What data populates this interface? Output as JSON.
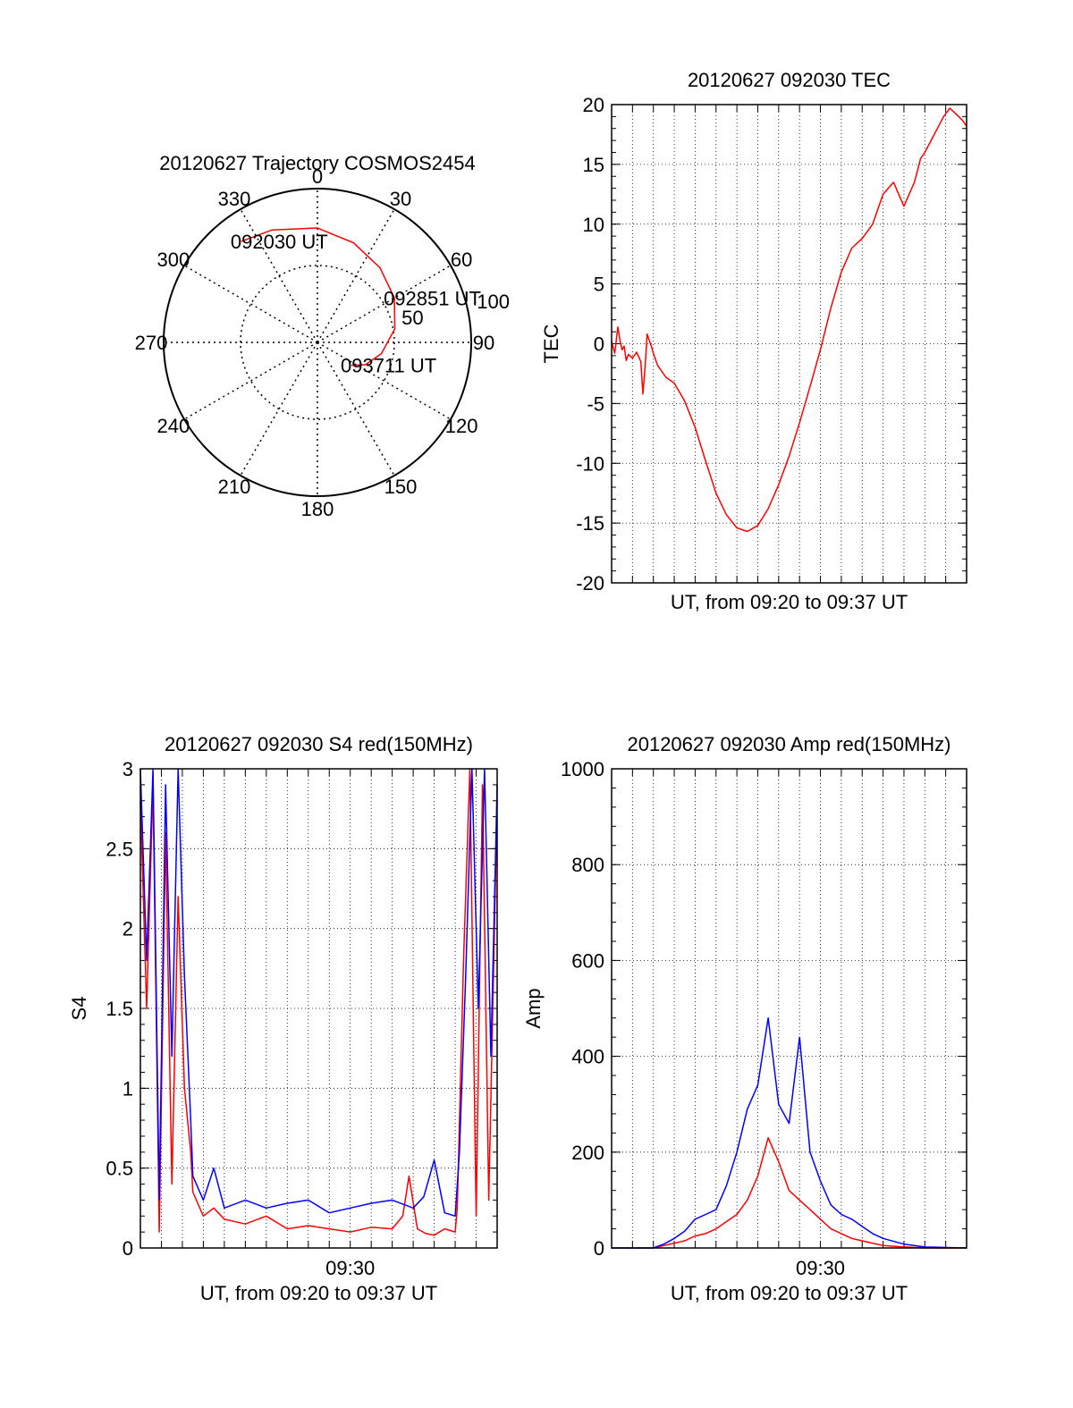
{
  "chart_data": [
    {
      "type": "polar",
      "title": "20120627 Trajectory COSMOS2454",
      "angle_labels": [
        "0",
        "30",
        "60",
        "90",
        "120",
        "150",
        "180",
        "210",
        "240",
        "270",
        "300",
        "330"
      ],
      "angles_deg": [
        0,
        30,
        60,
        90,
        120,
        150,
        180,
        210,
        240,
        270,
        300,
        330
      ],
      "radius_labels": [
        "50",
        "100"
      ],
      "radius_values": [
        50,
        100
      ],
      "trajectory": {
        "color": "#ff0000",
        "points": [
          {
            "az": 323,
            "el": 16
          },
          {
            "az": 338,
            "el": 19
          },
          {
            "az": 0,
            "el": 23
          },
          {
            "az": 20,
            "el": 28
          },
          {
            "az": 40,
            "el": 33
          },
          {
            "az": 60,
            "el": 38
          },
          {
            "az": 80,
            "el": 44
          },
          {
            "az": 100,
            "el": 52
          },
          {
            "az": 115,
            "el": 59
          },
          {
            "az": 124,
            "el": 66
          }
        ]
      },
      "annotations": [
        {
          "text": "092030 UT",
          "point": "start"
        },
        {
          "text": "092851 UT",
          "point": "middle"
        },
        {
          "text": "093711 UT",
          "point": "end"
        }
      ]
    },
    {
      "type": "line",
      "title": "20120627 092030 TEC",
      "xlabel": "UT, from 09:20 to 09:37 UT",
      "ylabel": "TEC",
      "xlim": [
        0,
        17
      ],
      "ylim": [
        -20,
        20
      ],
      "yticks": [
        -20,
        -15,
        -10,
        -5,
        0,
        5,
        10,
        15,
        20
      ],
      "grid": true,
      "series": [
        {
          "color": "#ff0000",
          "x": [
            0,
            0.15,
            0.3,
            0.4,
            0.5,
            0.6,
            0.7,
            0.8,
            1.0,
            1.2,
            1.4,
            1.5,
            1.6,
            1.7,
            1.9,
            2.0,
            2.2,
            2.6,
            3.0,
            3.5,
            4.0,
            4.5,
            5.0,
            5.5,
            6.0,
            6.5,
            7.0,
            7.5,
            8.0,
            8.5,
            9.0,
            9.5,
            10.0,
            10.5,
            11.0,
            11.5,
            12.0,
            12.5,
            13.0,
            13.5,
            14.0,
            14.5,
            14.8,
            15.0,
            15.3,
            15.6,
            15.9,
            16.2,
            16.5,
            16.8,
            17.0
          ],
          "y": [
            0.2,
            -0.8,
            1.4,
            0.3,
            -0.5,
            -0.2,
            -1.4,
            -0.9,
            -1.2,
            -0.7,
            -1.5,
            -4.2,
            -2.0,
            0.8,
            -0.2,
            -0.8,
            -1.8,
            -2.8,
            -3.3,
            -4.8,
            -7.0,
            -9.8,
            -12.5,
            -14.3,
            -15.4,
            -15.7,
            -15.2,
            -13.8,
            -11.8,
            -9.4,
            -6.6,
            -3.6,
            -0.5,
            3.0,
            6.0,
            8.0,
            8.8,
            10.0,
            12.5,
            13.5,
            11.5,
            13.5,
            15.5,
            16.0,
            17.0,
            18.0,
            19.0,
            19.7,
            19.2,
            18.7,
            18.2
          ]
        }
      ]
    },
    {
      "type": "line",
      "title": "20120627 092030 S4 red(150MHz)",
      "xlabel": "UT, from 09:20 to 09:37 UT",
      "ylabel": "S4",
      "xlim": [
        0,
        17
      ],
      "ylim": [
        0,
        3
      ],
      "yticks": [
        0,
        0.5,
        1,
        1.5,
        2,
        2.5,
        3
      ],
      "xtick_labels": [
        {
          "x": 10,
          "label": "09:30"
        }
      ],
      "grid": true,
      "series": [
        {
          "color": "#ff0000",
          "x": [
            0,
            0.3,
            0.6,
            0.9,
            1.2,
            1.5,
            1.8,
            2.1,
            2.4,
            2.5,
            3.0,
            3.5,
            4.0,
            5.0,
            6.0,
            7.0,
            8.0,
            9.0,
            10.0,
            11.0,
            12.0,
            12.5,
            12.8,
            13.2,
            13.6,
            14.0,
            14.5,
            15.0,
            15.1,
            15.4,
            15.7,
            16.0,
            16.3,
            16.6,
            17.0
          ],
          "y": [
            2.8,
            1.5,
            2.9,
            0.1,
            2.6,
            0.4,
            2.2,
            1.0,
            0.6,
            0.35,
            0.2,
            0.25,
            0.18,
            0.15,
            0.2,
            0.12,
            0.14,
            0.12,
            0.1,
            0.13,
            0.12,
            0.2,
            0.45,
            0.12,
            0.09,
            0.08,
            0.12,
            0.1,
            0.25,
            1.8,
            3.0,
            0.2,
            2.9,
            0.3,
            2.8
          ]
        },
        {
          "color": "#0000ff",
          "x": [
            0,
            0.3,
            0.6,
            0.9,
            1.2,
            1.5,
            1.8,
            2.1,
            2.4,
            2.5,
            3.0,
            3.5,
            4.0,
            5.0,
            6.0,
            7.0,
            8.0,
            9.0,
            10.0,
            11.0,
            12.0,
            13.0,
            13.5,
            14.0,
            14.5,
            15.0,
            15.2,
            15.5,
            15.8,
            16.1,
            16.4,
            16.7,
            17.0
          ],
          "y": [
            3.0,
            1.8,
            3.0,
            0.3,
            2.9,
            1.2,
            3.0,
            1.7,
            0.8,
            0.45,
            0.3,
            0.5,
            0.25,
            0.3,
            0.25,
            0.28,
            0.3,
            0.22,
            0.25,
            0.28,
            0.3,
            0.25,
            0.32,
            0.55,
            0.22,
            0.2,
            0.6,
            1.7,
            3.0,
            1.5,
            3.0,
            1.2,
            2.9
          ]
        }
      ]
    },
    {
      "type": "line",
      "title": "20120627 092030 Amp red(150MHz)",
      "xlabel": "UT, from 09:20 to 09:37 UT",
      "ylabel": "Amp",
      "xlim": [
        0,
        17
      ],
      "ylim": [
        0,
        1000
      ],
      "yticks": [
        0,
        200,
        400,
        600,
        800,
        1000
      ],
      "xtick_labels": [
        {
          "x": 10,
          "label": "09:30"
        }
      ],
      "grid": true,
      "series": [
        {
          "color": "#ff0000",
          "x": [
            0,
            2.0,
            2.5,
            3.0,
            3.5,
            4.0,
            4.5,
            5.0,
            5.5,
            6.0,
            6.5,
            7.0,
            7.5,
            8.0,
            8.5,
            9.0,
            9.5,
            10.0,
            10.5,
            11.0,
            11.5,
            12.0,
            12.5,
            13.0,
            14.0,
            15.0,
            17.0
          ],
          "y": [
            0,
            0,
            5,
            10,
            15,
            25,
            30,
            40,
            55,
            70,
            100,
            150,
            230,
            180,
            120,
            100,
            80,
            60,
            40,
            30,
            20,
            15,
            10,
            5,
            2,
            0,
            0
          ]
        },
        {
          "color": "#0000ff",
          "x": [
            0,
            2.0,
            2.5,
            3.0,
            3.5,
            4.0,
            4.5,
            5.0,
            5.5,
            6.0,
            6.5,
            7.0,
            7.5,
            8.0,
            8.5,
            9.0,
            9.5,
            10.0,
            10.5,
            11.0,
            11.5,
            12.0,
            12.5,
            13.0,
            14.0,
            15.0,
            17.0
          ],
          "y": [
            0,
            0,
            8,
            20,
            35,
            60,
            70,
            80,
            130,
            200,
            290,
            340,
            480,
            300,
            260,
            440,
            200,
            140,
            90,
            70,
            60,
            45,
            30,
            20,
            8,
            2,
            0
          ]
        }
      ]
    }
  ]
}
